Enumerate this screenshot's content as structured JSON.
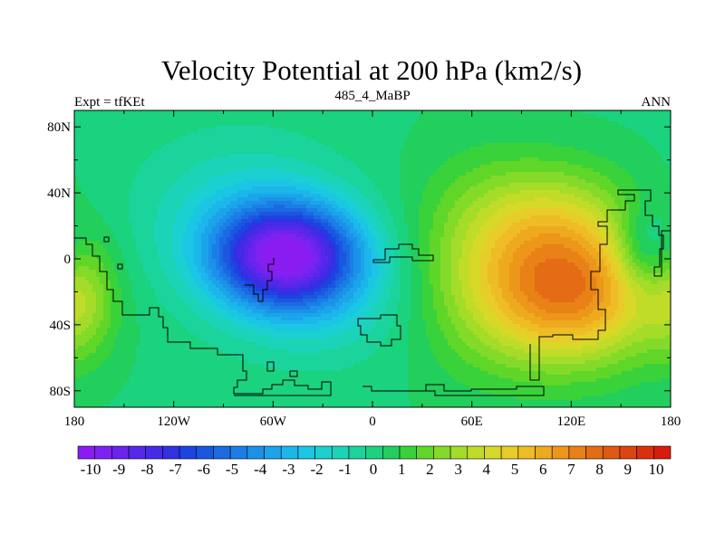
{
  "chart_data": {
    "type": "heatmap",
    "title": "Velocity Potential at 200 hPa (km2/s)",
    "subtitle_left": "Expt = tfKEt",
    "subtitle_center": "485_4_MaBP",
    "subtitle_right": "ANN",
    "x_ticks": [
      "180",
      "120W",
      "60W",
      "0",
      "60E",
      "120E",
      "180"
    ],
    "x_tick_values": [
      -180,
      -120,
      -60,
      0,
      60,
      120,
      180
    ],
    "y_ticks": [
      "80N",
      "40N",
      "0",
      "40S",
      "80S"
    ],
    "y_tick_values": [
      80,
      40,
      0,
      -40,
      -80
    ],
    "xlim": [
      -180,
      180
    ],
    "ylim": [
      -90,
      90
    ],
    "colorbar_labels": [
      "-10",
      "-9",
      "-8",
      "-7",
      "-6",
      "-5",
      "-4",
      "-3",
      "-2",
      "-1",
      "0",
      "1",
      "2",
      "3",
      "4",
      "5",
      "6",
      "7",
      "8",
      "9",
      "10"
    ],
    "colorbar_min": -10.5,
    "colorbar_max": 10.5,
    "colorbar_colors": [
      "#8a1cf2",
      "#7d22f0",
      "#6a24ee",
      "#5727eb",
      "#452ae8",
      "#3230e3",
      "#1b44e0",
      "#1b56e0",
      "#1b6ae2",
      "#1b7ee6",
      "#1b92e8",
      "#1ba4ea",
      "#1bb6ea",
      "#1bc6e4",
      "#1bd0d0",
      "#1bd4b8",
      "#1bd49c",
      "#1bd27e",
      "#22ce5c",
      "#3ad23a",
      "#60d629",
      "#84da29",
      "#a4dc29",
      "#c0dc29",
      "#d8d829",
      "#e8cc29",
      "#eebc24",
      "#eeaa1e",
      "#ec961a",
      "#e88216",
      "#e46c14",
      "#e05812",
      "#dc4410",
      "#da300e",
      "#d81c0c"
    ],
    "centers": [
      {
        "lon": -52,
        "lat": 2,
        "amp": -9.2,
        "sx": 30,
        "sy": 22
      },
      {
        "lon": -30,
        "lat": -25,
        "amp": -1.5,
        "sx": 40,
        "sy": 28
      },
      {
        "lon": -80,
        "lat": 25,
        "amp": -1.8,
        "sx": 45,
        "sy": 35
      },
      {
        "lon": 118,
        "lat": -20,
        "amp": 7.0,
        "sx": 38,
        "sy": 30
      },
      {
        "lon": 105,
        "lat": 25,
        "amp": 2.5,
        "sx": 35,
        "sy": 25
      },
      {
        "lon": 165,
        "lat": 5,
        "amp": -2.5,
        "sx": 14,
        "sy": 18
      },
      {
        "lon": -175,
        "lat": -25,
        "amp": 2.0,
        "sx": 14,
        "sy": 25
      },
      {
        "lon": 60,
        "lat": -5,
        "amp": 1.5,
        "sx": 30,
        "sy": 45
      }
    ],
    "grid": false,
    "colorbar_position": "bottom"
  }
}
